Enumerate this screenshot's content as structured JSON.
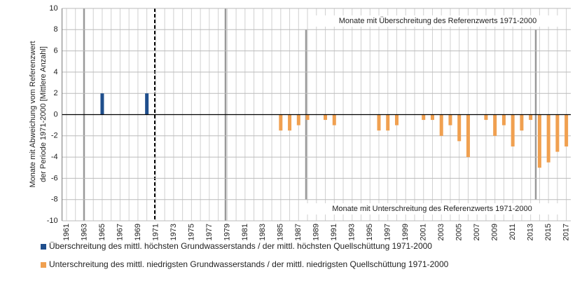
{
  "chart_data": {
    "type": "bar",
    "ylabel": [
      "Monate mit Abweichung vom Referenzwert",
      "der Periode 1971-2000 [Mittlere Anzahl]"
    ],
    "annotations": [
      "Monate mit Überschreitung des Referenzwerts 1971-2000",
      "Monate mit Unterschreitung des Referenzwerts 1971-2000"
    ],
    "categories": [
      "1961",
      null,
      "1963",
      null,
      "1965",
      null,
      "1967",
      null,
      "1969",
      null,
      "1971",
      null,
      "1973",
      null,
      "1975",
      null,
      "1977",
      null,
      "1979",
      null,
      "1981",
      null,
      "1983",
      null,
      "1985",
      null,
      "1987",
      null,
      "1989",
      null,
      "1991",
      null,
      "1993",
      null,
      "1995",
      null,
      "1997",
      null,
      "1999",
      null,
      "2001",
      null,
      "2003",
      null,
      "2005",
      null,
      "2007",
      null,
      "2009",
      null,
      "2011",
      null,
      "2013",
      null,
      "2015",
      null,
      "2017"
    ],
    "series": [
      {
        "name": "Überschreitung des mittl. höchsten Grundwasserstands / der mittl. höchsten Quellschüttung 1971-2000",
        "color": "#1f4e8c",
        "values": [
          0,
          0,
          0,
          0,
          2,
          0,
          0,
          0,
          0,
          2,
          0,
          0,
          0,
          0,
          0,
          0,
          0,
          0,
          0,
          0,
          0,
          0,
          0,
          0,
          0,
          0,
          0,
          0,
          0,
          0,
          0,
          0,
          0,
          0,
          0,
          0,
          0,
          0,
          0,
          0,
          0,
          0,
          0,
          0,
          0,
          0,
          0,
          0,
          0,
          0,
          0,
          0,
          0,
          0,
          0,
          0,
          0
        ]
      },
      {
        "name": "Unterschreitung des mittl. niedrigsten Grundwasserstands / der mittl. niedrigsten Quellschüttung 1971-2000",
        "color": "#f0a050",
        "values": [
          0,
          0,
          0,
          0,
          0,
          0,
          0,
          0,
          0,
          0,
          0,
          0,
          0,
          0,
          0,
          0,
          0,
          0,
          0,
          0,
          0,
          0,
          0,
          0,
          -1.5,
          -1.5,
          -1,
          -0.5,
          0,
          -0.5,
          -1,
          0,
          0,
          0,
          0,
          -1.5,
          -1.5,
          -1,
          0,
          0,
          -0.5,
          -0.5,
          -2,
          -1,
          -2.5,
          -4,
          0,
          -0.5,
          -2,
          -1,
          -3,
          -1.5,
          -0.5,
          -5,
          -4.5,
          -3.5,
          -3
        ]
      }
    ],
    "ylim": [
      -10,
      10
    ],
    "yticks": [
      -10,
      -8,
      -6,
      -4,
      -2,
      0,
      2,
      4,
      6,
      8,
      10
    ],
    "grid": true
  }
}
